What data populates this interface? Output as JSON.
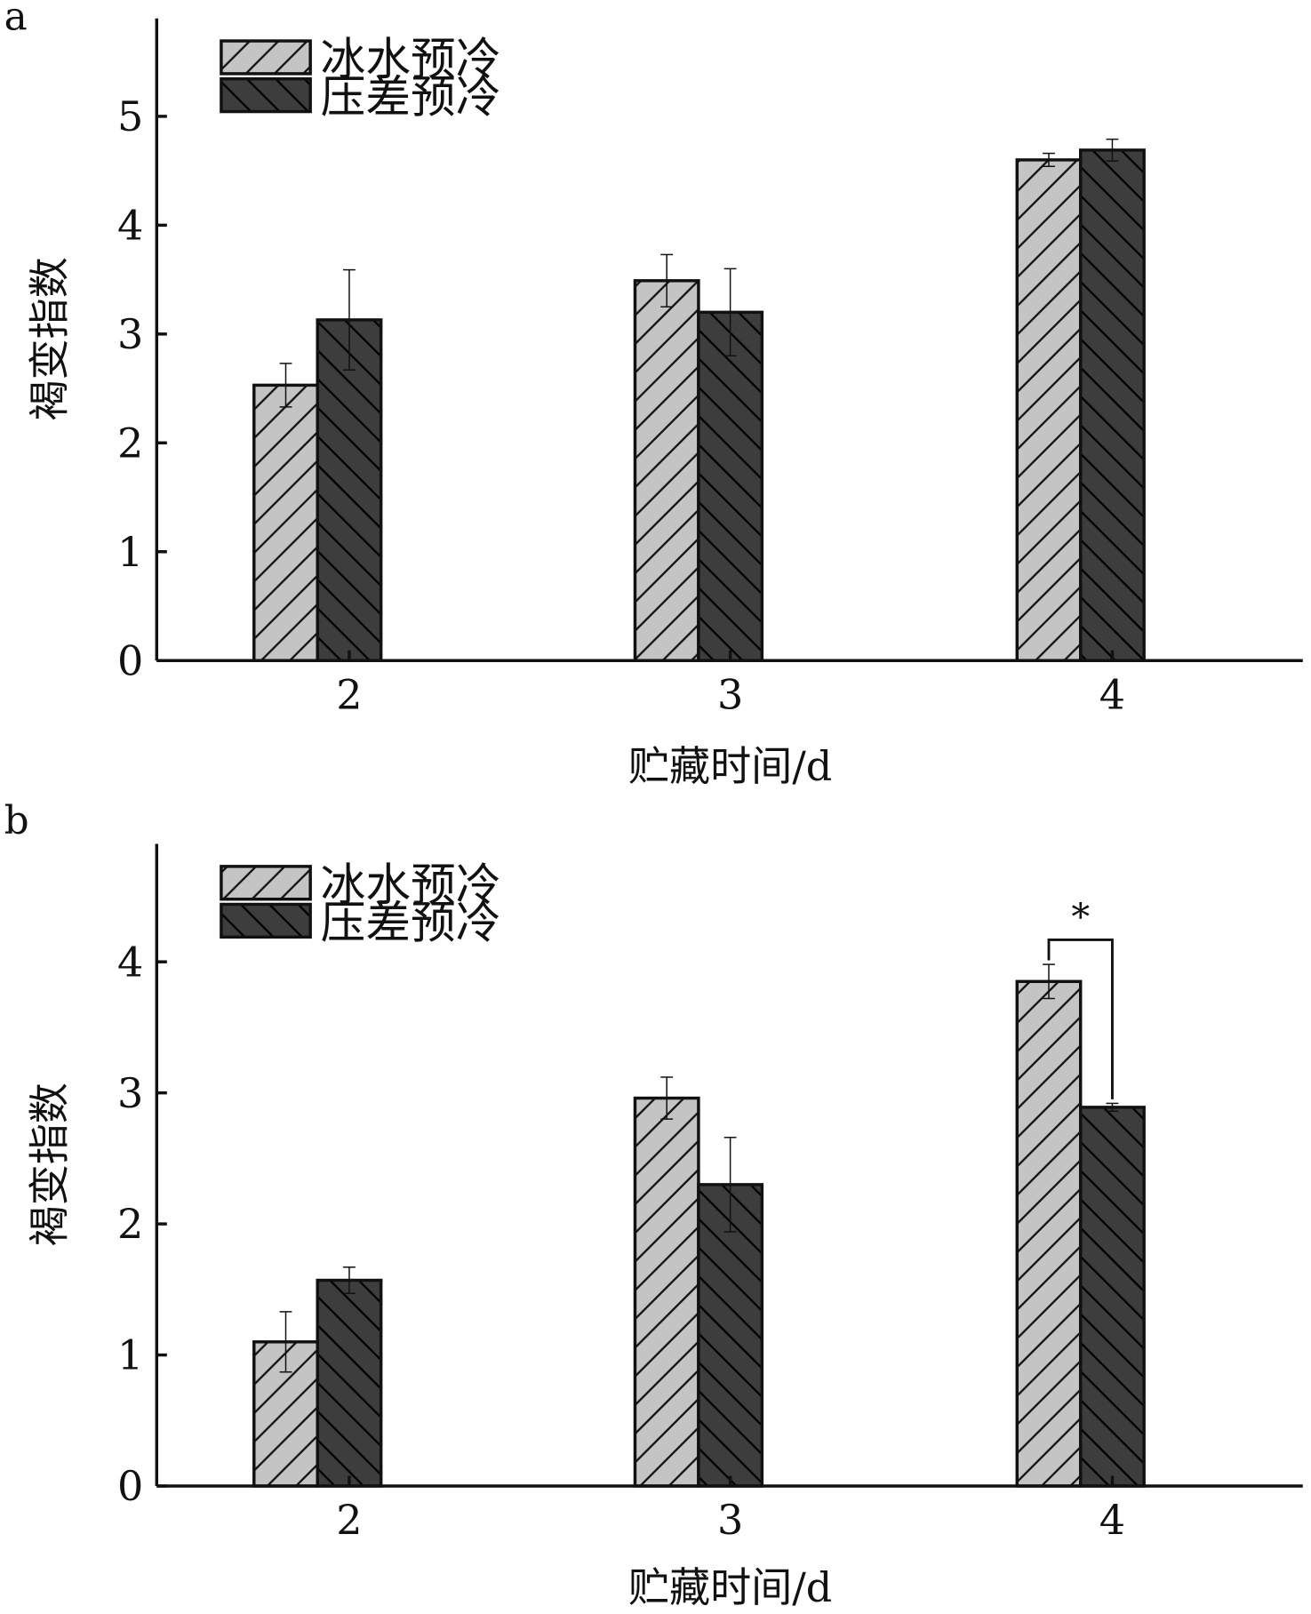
{
  "colors": {
    "ice": "#c4c4c4",
    "pressure": "#3d3d3d",
    "axis": "#111111"
  },
  "legend": [
    "冰水预冷",
    "压差预冷"
  ],
  "chart_data": [
    {
      "panel_label": "a",
      "type": "bar",
      "title": "",
      "xlabel": "贮藏时间/d",
      "ylabel": "褐变指数",
      "categories": [
        "2",
        "3",
        "4"
      ],
      "ylim": [
        0,
        5.9
      ],
      "yticks": [
        "0",
        "1",
        "2",
        "3",
        "4",
        "5"
      ],
      "series": [
        {
          "name": "冰水预冷",
          "values": [
            2.53,
            3.49,
            4.6
          ],
          "errors": [
            0.2,
            0.24,
            0.06
          ]
        },
        {
          "name": "压差预冷",
          "values": [
            3.13,
            3.2,
            4.69
          ],
          "errors": [
            0.46,
            0.4,
            0.1
          ]
        }
      ],
      "legend_position": "top-left",
      "annotations": []
    },
    {
      "panel_label": "b",
      "type": "bar",
      "title": "",
      "xlabel": "贮藏时间/d",
      "ylabel": "褐变指数",
      "categories": [
        "2",
        "3",
        "4"
      ],
      "ylim": [
        0,
        4.9
      ],
      "yticks": [
        "0",
        "1",
        "2",
        "3",
        "4"
      ],
      "series": [
        {
          "name": "冰水预冷",
          "values": [
            1.1,
            2.96,
            3.85
          ],
          "errors": [
            0.23,
            0.16,
            0.13
          ]
        },
        {
          "name": "压差预冷",
          "values": [
            1.57,
            2.3,
            2.89
          ],
          "errors": [
            0.1,
            0.36,
            0.03
          ]
        }
      ],
      "legend_position": "top-left",
      "annotations": [
        {
          "text": "*",
          "category": "4",
          "type": "significance-bracket"
        }
      ]
    }
  ]
}
